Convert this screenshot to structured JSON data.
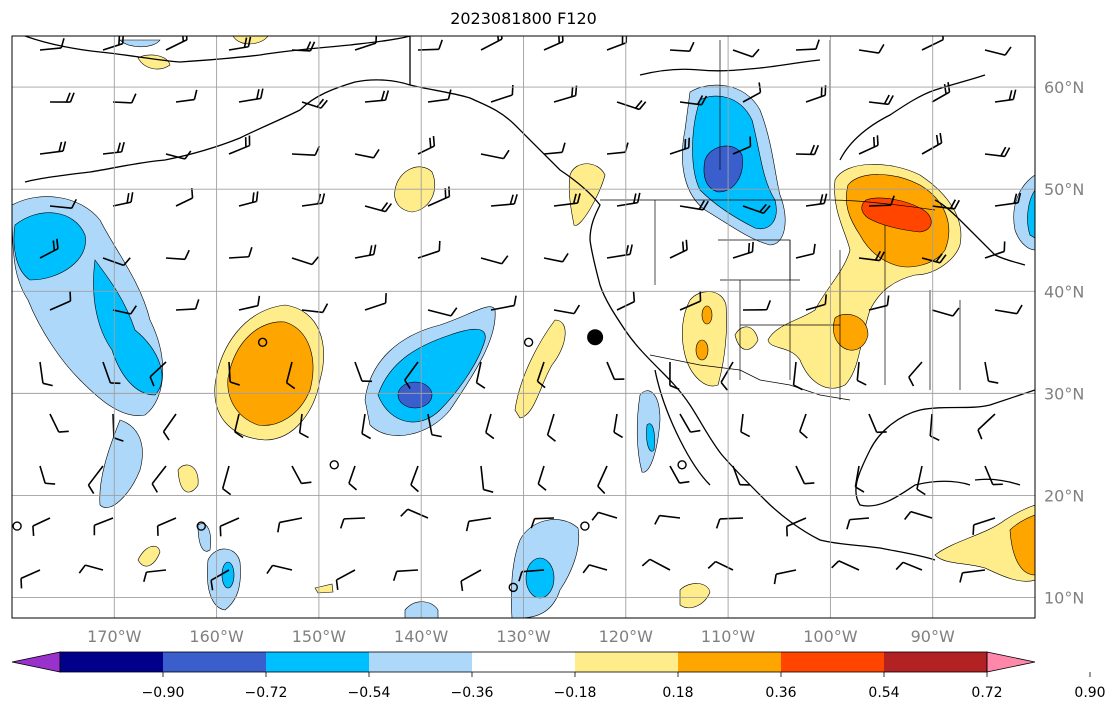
{
  "title": "2023081800 F120",
  "map": {
    "projection": "plate-carree",
    "lon_range": [
      -180,
      -80
    ],
    "lat_range": [
      8,
      65
    ],
    "gridlines": true,
    "lon_ticks": [
      "170°W",
      "160°W",
      "150°W",
      "140°W",
      "130°W",
      "120°W",
      "110°W",
      "100°W",
      "90°W"
    ],
    "lat_ticks": [
      "60°N",
      "50°N",
      "40°N",
      "30°N",
      "20°N",
      "10°N"
    ],
    "marker": {
      "name": "location-dot",
      "lon": -123,
      "lat": 35.5
    }
  },
  "colorbar": {
    "ticks": [
      "−0.90",
      "−0.72",
      "−0.54",
      "−0.36",
      "−0.18",
      "0.18",
      "0.36",
      "0.54",
      "0.72",
      "0.90"
    ],
    "colors": [
      "#9932cc",
      "#00008b",
      "#3a5fcd",
      "#00bfff",
      "#add8fa",
      "#ffffff",
      "#ffec8b",
      "#ffa500",
      "#ff4500",
      "#b22222",
      "#ff88aa"
    ]
  }
}
